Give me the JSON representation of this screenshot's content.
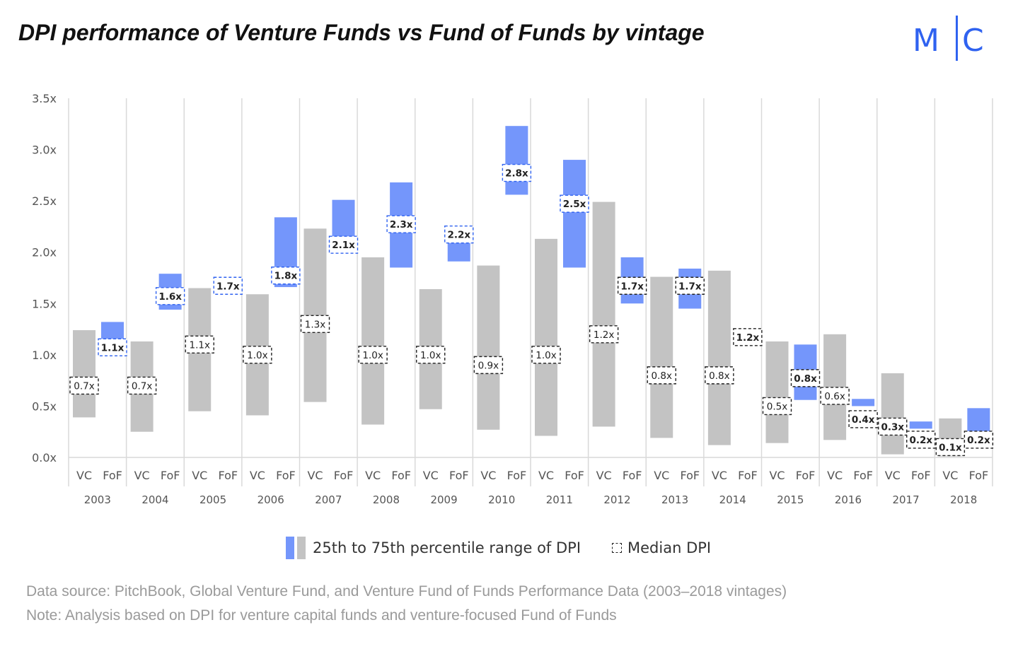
{
  "title": "DPI performance of Venture Funds vs Fund of Funds by vintage",
  "logo": {
    "left": "M",
    "right": "C"
  },
  "colors": {
    "fof": "#7496fb",
    "vc": "#c3c3c3",
    "accent": "#2f62f0",
    "grid": "#d9d9d9"
  },
  "legend": {
    "range_label": "25th to 75th percentile range of DPI",
    "median_label": "Median DPI"
  },
  "notes": [
    "Data source: PitchBook, Global Venture Fund, and Venture Fund of Funds Performance Data (2003–2018 vintages)",
    "Note: Analysis based on DPI for venture capital funds and venture-focused Fund of Funds"
  ],
  "chart_data": {
    "type": "bar",
    "title": "DPI performance of Venture Funds vs Fund of Funds by vintage",
    "ylim": [
      0,
      3.5
    ],
    "yticks": [
      "0.0x",
      "0.5x",
      "1.0x",
      "1.5x",
      "2.0x",
      "2.5x",
      "3.0x",
      "3.5x"
    ],
    "ytick_values": [
      0,
      0.5,
      1,
      1.5,
      2,
      2.5,
      3,
      3.5
    ],
    "subcategories": [
      "VC",
      "FoF"
    ],
    "categories": [
      "2003",
      "2004",
      "2005",
      "2006",
      "2007",
      "2008",
      "2009",
      "2010",
      "2011",
      "2012",
      "2013",
      "2014",
      "2015",
      "2016",
      "2017",
      "2018"
    ],
    "series": [
      {
        "name": "VC",
        "p25": [
          0.39,
          0.25,
          0.45,
          0.41,
          0.54,
          0.32,
          0.47,
          0.27,
          0.21,
          0.3,
          0.19,
          0.12,
          0.14,
          0.17,
          0.03,
          0.01
        ],
        "p75": [
          1.24,
          1.13,
          1.65,
          1.59,
          2.23,
          1.95,
          1.64,
          1.87,
          2.13,
          2.49,
          1.76,
          1.82,
          1.13,
          1.2,
          0.82,
          0.38
        ],
        "median_labels": [
          "0.7x",
          "0.7x",
          "1.1x",
          "1.0x",
          "1.3x",
          "1.0x",
          "1.0x",
          "0.9x",
          "1.0x",
          "1.2x",
          "0.8x",
          "0.8x",
          "0.5x",
          "0.6x",
          "0.3x",
          "0.1x"
        ],
        "median": [
          0.7,
          0.7,
          1.1,
          1.0,
          1.3,
          1.0,
          1.0,
          0.9,
          1.0,
          1.2,
          0.8,
          0.8,
          0.5,
          0.6,
          0.3,
          0.1
        ]
      },
      {
        "name": "FoF",
        "p25": [
          1.05,
          1.44,
          1.68,
          1.66,
          2.0,
          1.85,
          1.91,
          2.56,
          1.85,
          1.5,
          1.45,
          1.11,
          0.56,
          0.5,
          0.28,
          0.11
        ],
        "p75": [
          1.32,
          1.79,
          1.72,
          2.34,
          2.51,
          2.68,
          2.25,
          3.23,
          2.9,
          1.95,
          1.84,
          1.25,
          1.1,
          0.57,
          0.35,
          0.48
        ],
        "median_labels": [
          "1.1x",
          "1.6x",
          "1.7x",
          "1.8x",
          "2.1x",
          "2.3x",
          "2.2x",
          "2.8x",
          "2.5x",
          "1.7x",
          "1.7x",
          "1.2x",
          "0.8x",
          "0.4x",
          "0.2x",
          "0.2x"
        ],
        "median": [
          1.1,
          1.6,
          1.7,
          1.8,
          2.1,
          2.3,
          2.2,
          2.8,
          2.5,
          1.7,
          1.7,
          1.2,
          0.8,
          0.4,
          0.2,
          0.2
        ]
      }
    ]
  }
}
